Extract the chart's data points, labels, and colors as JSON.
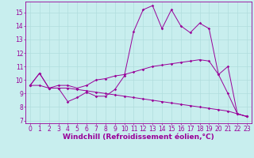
{
  "xlabel": "Windchill (Refroidissement éolien,°C)",
  "bg_color": "#c8eeee",
  "grid_color": "#b0dddd",
  "line_color": "#990099",
  "x_ticks": [
    0,
    1,
    2,
    3,
    4,
    5,
    6,
    7,
    8,
    9,
    10,
    11,
    12,
    13,
    14,
    15,
    16,
    17,
    18,
    19,
    20,
    21,
    22,
    23
  ],
  "y_ticks": [
    7,
    8,
    9,
    10,
    11,
    12,
    13,
    14,
    15
  ],
  "ylim": [
    6.8,
    15.8
  ],
  "xlim": [
    -0.5,
    23.5
  ],
  "line1": [
    9.6,
    10.5,
    9.4,
    9.4,
    8.4,
    8.7,
    9.1,
    8.8,
    8.8,
    9.3,
    10.3,
    13.6,
    15.2,
    15.5,
    13.8,
    15.2,
    14.0,
    13.5,
    14.2,
    13.8,
    10.4,
    9.0,
    7.5,
    7.3
  ],
  "line2": [
    9.6,
    10.5,
    9.4,
    9.6,
    9.6,
    9.4,
    9.6,
    10.0,
    10.1,
    10.3,
    10.4,
    10.6,
    10.8,
    11.0,
    11.1,
    11.2,
    11.3,
    11.4,
    11.5,
    11.4,
    10.4,
    11.0,
    7.5,
    7.3
  ],
  "line3": [
    9.6,
    9.6,
    9.4,
    9.4,
    9.4,
    9.3,
    9.2,
    9.1,
    9.0,
    8.9,
    8.8,
    8.7,
    8.6,
    8.5,
    8.4,
    8.3,
    8.2,
    8.1,
    8.0,
    7.9,
    7.8,
    7.7,
    7.5,
    7.3
  ],
  "xlabel_fontsize": 6.5,
  "tick_fontsize": 5.5
}
